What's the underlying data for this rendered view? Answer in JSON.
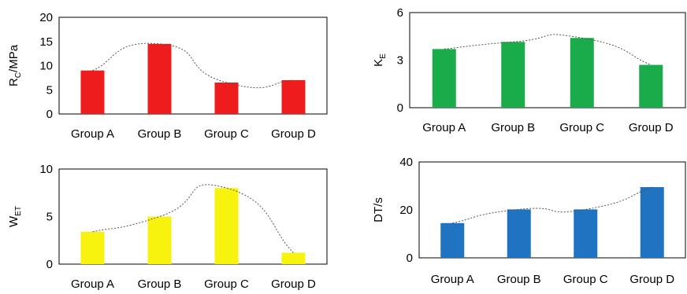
{
  "chart_data": [
    {
      "type": "bar",
      "categories": [
        "Group A",
        "Group B",
        "Group C",
        "Group D"
      ],
      "values": [
        9,
        14.5,
        6.5,
        7
      ],
      "ylabel": "R",
      "ylabel_sub": "C",
      "ylabel_suffix": "/MPa",
      "ylim": [
        0,
        20
      ],
      "yticks": [
        "0",
        "5",
        "10",
        "15",
        "20"
      ],
      "color": "#ee1c1c",
      "trendline": "dotted",
      "grid": false
    },
    {
      "type": "bar",
      "categories": [
        "Group A",
        "Group B",
        "Group C",
        "Group D"
      ],
      "values": [
        3.7,
        4.15,
        4.4,
        2.7
      ],
      "ylabel": "K",
      "ylabel_sub": "E",
      "ylabel_suffix": "",
      "ylim": [
        0,
        6
      ],
      "yticks": [
        "0",
        "3",
        "6"
      ],
      "color": "#1aab4b",
      "trendline": "dotted",
      "grid": false
    },
    {
      "type": "bar",
      "categories": [
        "Group A",
        "Group B",
        "Group C",
        "Group D"
      ],
      "values": [
        3.4,
        5.0,
        8.0,
        1.2
      ],
      "ylabel": "W",
      "ylabel_sub": "ET",
      "ylabel_suffix": "",
      "ylim": [
        0,
        10
      ],
      "yticks": [
        "0",
        "5",
        "10"
      ],
      "color": "#f7f20e",
      "trendline": "dotted",
      "grid": false
    },
    {
      "type": "bar",
      "categories": [
        "Group A",
        "Group B",
        "Group C",
        "Group D"
      ],
      "values": [
        14.5,
        20.2,
        20.2,
        29.5
      ],
      "ylabel": "DT/s",
      "ylabel_sub": "",
      "ylabel_suffix": "",
      "ylim": [
        0,
        40
      ],
      "yticks": [
        "0",
        "20",
        "40"
      ],
      "color": "#1f73c0",
      "trendline": "dotted",
      "grid": false
    }
  ]
}
